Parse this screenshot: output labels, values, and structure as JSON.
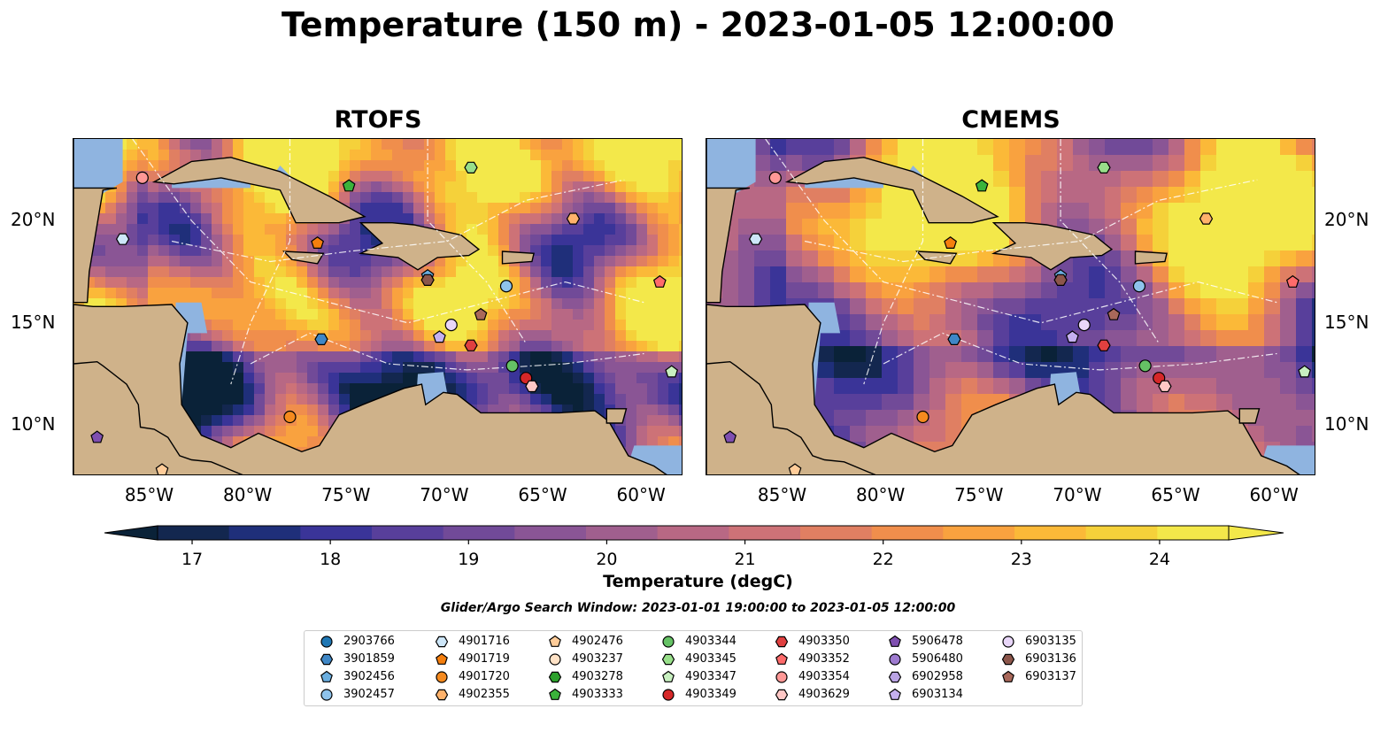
{
  "title": "Temperature (150 m) - 2023-01-05 12:00:00",
  "panels": [
    {
      "id": "rtofs",
      "title": "RTOFS"
    },
    {
      "id": "cmems",
      "title": "CMEMS"
    }
  ],
  "colors": {
    "land": "#cfb28a",
    "shelf": "#8fb4e0",
    "colormap": [
      "#0a2238",
      "#13274f",
      "#1f2f7a",
      "#3a3498",
      "#583f9b",
      "#714a98",
      "#8a5595",
      "#a05f8e",
      "#b86884",
      "#cd7277",
      "#e07f62",
      "#f08e4c",
      "#f9a23f",
      "#fbb938",
      "#f5d13a",
      "#f3e84a"
    ]
  },
  "colorbar": {
    "label": "Temperature (degC)",
    "ticks": [
      "17",
      "18",
      "19",
      "20",
      "21",
      "22",
      "23",
      "24"
    ],
    "min": 16.75,
    "max": 24.5,
    "step": 0.5,
    "extend": "both"
  },
  "search_window": "Glider/Argo Search Window: 2023-01-01 19:00:00 to 2023-01-05 12:00:00",
  "chart_data": {
    "type": "heatmap",
    "projection": "PlateCarree",
    "lon_range": [
      -89,
      -58
    ],
    "lat_range": [
      7.5,
      24
    ],
    "xticks": [
      "85°W",
      "80°W",
      "75°W",
      "70°W",
      "65°W",
      "60°W"
    ],
    "yticks": [
      "20°N",
      "15°N",
      "10°N"
    ],
    "variable": "Temperature",
    "depth_m": 150,
    "units": "degC",
    "floats": [
      {
        "id": "2903766",
        "marker": "circle",
        "color": "#1f77b4",
        "lon": null,
        "lat": null
      },
      {
        "id": "3901859",
        "marker": "hexagon",
        "color": "#3f87c6",
        "lon": -76.4,
        "lat": 14.2
      },
      {
        "id": "3902456",
        "marker": "pentagon",
        "color": "#6aaee0",
        "lon": -71.0,
        "lat": 17.3
      },
      {
        "id": "3902457",
        "marker": "circle",
        "color": "#8ec3ec",
        "lon": -67.0,
        "lat": 16.8
      },
      {
        "id": "4901716",
        "marker": "hexagon",
        "color": "#cde6f8",
        "lon": -86.5,
        "lat": 19.1
      },
      {
        "id": "4901719",
        "marker": "pentagon",
        "color": "#f57f0e",
        "lon": -76.6,
        "lat": 18.9
      },
      {
        "id": "4901720",
        "marker": "circle",
        "color": "#f58a1e",
        "lon": -78.0,
        "lat": 10.4
      },
      {
        "id": "4902355",
        "marker": "hexagon",
        "color": "#ffb26b",
        "lon": -63.6,
        "lat": 20.1
      },
      {
        "id": "4902476",
        "marker": "pentagon",
        "color": "#ffcc99",
        "lon": -84.5,
        "lat": 7.8
      },
      {
        "id": "4903237",
        "marker": "circle",
        "color": "#ffe2c6",
        "lon": null,
        "lat": null
      },
      {
        "id": "4903278",
        "marker": "hexagon",
        "color": "#2ca02c",
        "lon": null,
        "lat": null
      },
      {
        "id": "4903333",
        "marker": "pentagon",
        "color": "#3bb33b",
        "lon": -75.0,
        "lat": 21.7
      },
      {
        "id": "4903344",
        "marker": "circle",
        "color": "#65c265",
        "lon": -66.7,
        "lat": 12.9
      },
      {
        "id": "4903345",
        "marker": "hexagon",
        "color": "#98df8a",
        "lon": -68.8,
        "lat": 22.6
      },
      {
        "id": "4903347",
        "marker": "pentagon",
        "color": "#c8f0c0",
        "lon": -58.6,
        "lat": 12.6
      },
      {
        "id": "4903349",
        "marker": "circle",
        "color": "#d62728",
        "lon": -66.0,
        "lat": 12.3
      },
      {
        "id": "4903350",
        "marker": "hexagon",
        "color": "#e04040",
        "lon": -68.8,
        "lat": 13.9
      },
      {
        "id": "4903352",
        "marker": "pentagon",
        "color": "#ff6b6b",
        "lon": -59.2,
        "lat": 17.0
      },
      {
        "id": "4903354",
        "marker": "circle",
        "color": "#ff9896",
        "lon": -85.5,
        "lat": 22.1
      },
      {
        "id": "4903629",
        "marker": "hexagon",
        "color": "#ffc7c5",
        "lon": -65.7,
        "lat": 11.9
      },
      {
        "id": "5906478",
        "marker": "pentagon",
        "color": "#7f4fb0",
        "lon": -87.8,
        "lat": 9.4
      },
      {
        "id": "5906480",
        "marker": "circle",
        "color": "#9e7bd0",
        "lon": null,
        "lat": null
      },
      {
        "id": "6902958",
        "marker": "hexagon",
        "color": "#b9a3e3",
        "lon": null,
        "lat": null
      },
      {
        "id": "6903134",
        "marker": "pentagon",
        "color": "#c5b0f0",
        "lon": -70.4,
        "lat": 14.3
      },
      {
        "id": "6903135",
        "marker": "circle",
        "color": "#e8d6f8",
        "lon": -69.8,
        "lat": 14.9
      },
      {
        "id": "6903136",
        "marker": "hexagon",
        "color": "#8c564b",
        "lon": -71.0,
        "lat": 17.1
      },
      {
        "id": "6903137",
        "marker": "pentagon",
        "color": "#a9685a",
        "lon": -68.3,
        "lat": 15.4
      }
    ]
  }
}
